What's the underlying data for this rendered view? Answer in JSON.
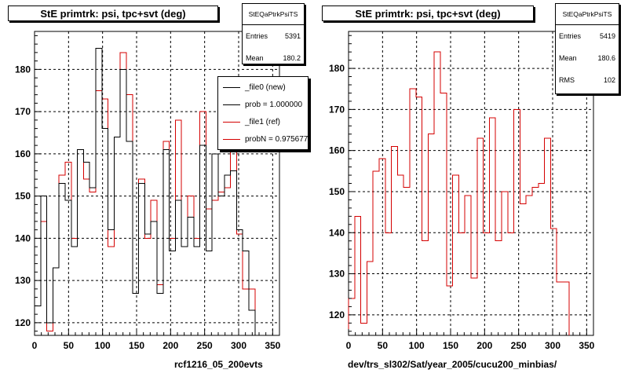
{
  "chart_data": [
    {
      "type": "histogram",
      "title": "StE primtrk: psi, tpc+svt (deg)",
      "xlabel": "rcf1216_05_200evts",
      "ylabel": "",
      "xlim": [
        0,
        360
      ],
      "ylim": [
        117,
        189
      ],
      "xticks": [
        0,
        50,
        100,
        150,
        200,
        250,
        300,
        350
      ],
      "yticks": [
        120,
        130,
        140,
        150,
        160,
        170,
        180
      ],
      "grid": true,
      "bin_width": 9,
      "stats": {
        "name": "StEQaPtrkPsiTS",
        "entries_label": "Entries",
        "entries": "5391",
        "mean_label": "Mean",
        "mean": "180.2"
      },
      "legend": {
        "placement": "top-right",
        "entries": [
          {
            "label": "_file0 (new)",
            "color": "#000000"
          },
          {
            "label": "prob = 1.000000",
            "color": "#000000"
          },
          {
            "label": "_file1 (ref)",
            "color": "#d40000"
          },
          {
            "label": "probN = 0.975677",
            "color": "#d40000"
          }
        ]
      },
      "series": [
        {
          "name": "_file0 (new)",
          "color": "#000000",
          "values": [
            124,
            150,
            120,
            133,
            153,
            149,
            138,
            161,
            158,
            152,
            185,
            166,
            142,
            164,
            180,
            163,
            127,
            153,
            141,
            144,
            127,
            161,
            137,
            149,
            138,
            145,
            138,
            162,
            137,
            160,
            150,
            155,
            156,
            142,
            137,
            123
          ]
        },
        {
          "name": "_file1 (ref)",
          "color": "#d40000",
          "values": [
            124,
            144,
            118,
            133,
            155,
            158,
            140,
            161,
            154,
            151,
            175,
            173,
            138,
            164,
            184,
            174,
            127,
            154,
            140,
            149,
            129,
            163,
            140,
            168,
            138,
            150,
            140,
            170,
            147,
            149,
            151,
            152,
            163,
            141,
            128,
            128
          ]
        }
      ]
    },
    {
      "type": "histogram",
      "title": "StE primtrk: psi, tpc+svt (deg)",
      "xlabel": "dev/trs_sl302/Sat/year_2005/cucu200_minbias/",
      "ylabel": "",
      "xlim": [
        0,
        360
      ],
      "ylim": [
        115,
        189
      ],
      "xticks": [
        0,
        50,
        100,
        150,
        200,
        250,
        300,
        350
      ],
      "yticks": [
        120,
        130,
        140,
        150,
        160,
        170,
        180
      ],
      "grid": true,
      "bin_width": 9,
      "stats": {
        "name": "StEQaPtrkPsiTS",
        "entries_label": "Entries",
        "entries": "5419",
        "mean_label": "Mean",
        "mean": "180.6",
        "rms_label": "RMS",
        "rms": "102"
      },
      "series": [
        {
          "name": "",
          "color": "#d40000",
          "values": [
            124,
            144,
            118,
            133,
            155,
            158,
            140,
            161,
            154,
            151,
            175,
            173,
            138,
            164,
            184,
            174,
            127,
            154,
            140,
            149,
            129,
            163,
            140,
            168,
            138,
            150,
            140,
            170,
            147,
            149,
            151,
            152,
            163,
            141,
            128,
            128
          ]
        }
      ]
    }
  ]
}
